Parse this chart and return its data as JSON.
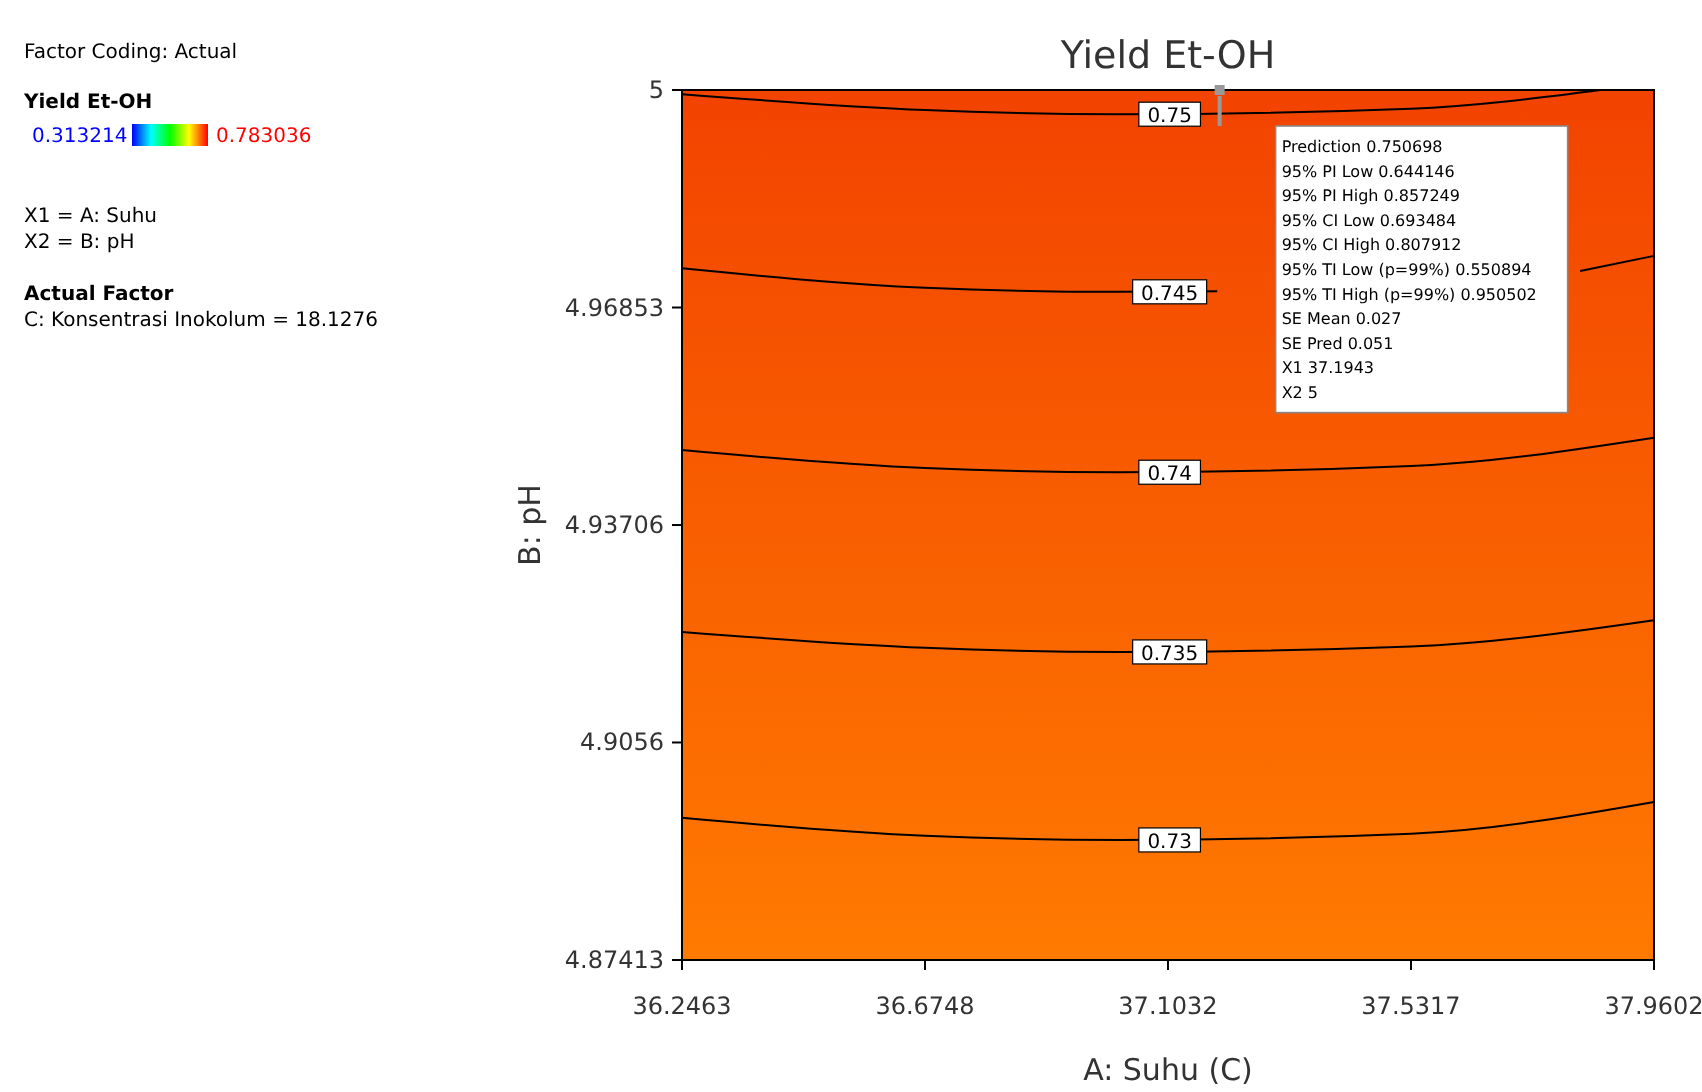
{
  "chart_data": {
    "type": "line",
    "title": "Yield Et-OH",
    "xlabel": "A: Suhu (C)",
    "ylabel": "B: pH",
    "clabel": "Yield Et-OH",
    "xlim": [
      36.2463,
      37.9602
    ],
    "xticks": [
      36.2463,
      36.6748,
      37.1032,
      37.5317,
      37.9602
    ],
    "ylim": [
      4.87413,
      5
    ],
    "yticks": [
      4.87413,
      4.9056,
      4.93706,
      4.96853,
      5
    ],
    "series": [
      {
        "name": "0.75",
        "color": "#000000",
        "x": [
          36.2463,
          36.6748,
          37.018,
          37.5317,
          37.866
        ],
        "values": [
          4.9994,
          4.9971,
          4.9965,
          4.9973,
          5
        ]
      },
      {
        "name": "0.745",
        "color": "#000000",
        "x": [
          36.2463,
          36.6748,
          37.018,
          37.19,
          37.5317,
          37.83,
          37.9602
        ],
        "values": [
          4.9742,
          4.9714,
          4.9708,
          4.9709,
          null,
          4.9738,
          4.976
        ]
      },
      {
        "name": "0.74",
        "color": "#000000",
        "x": [
          36.2463,
          36.6748,
          37.018,
          37.5317,
          37.9602
        ],
        "values": [
          4.9479,
          4.9453,
          4.9447,
          4.9456,
          4.9497
        ]
      },
      {
        "name": "0.735",
        "color": "#000000",
        "x": [
          36.2463,
          36.6748,
          37.018,
          37.5317,
          37.9602
        ],
        "values": [
          4.9216,
          4.9193,
          4.9187,
          4.9195,
          4.9233
        ]
      },
      {
        "name": "0.73",
        "color": "#000000",
        "x": [
          36.2463,
          36.6748,
          37.018,
          37.5317,
          37.9602
        ],
        "values": [
          4.8947,
          4.8921,
          4.8915,
          4.8924,
          4.897
        ]
      },
      {
        "type": "scatter",
        "color": "#999999",
        "marker": "square",
        "x": [
          37.1943
        ],
        "values": [
          5
        ]
      }
    ],
    "annotations": [
      "Factor Coding: Actual",
      "0.313214",
      "0.783036",
      "X1 = A: Suhu",
      "X2 = B: pH",
      "Actual Factor",
      "C: Konsentrasi Inokolum = 18.1276",
      "Prediction 0.750698",
      "95% PI Low 0.644146",
      "95% PI High 0.857249",
      "95% CI Low 0.693484",
      "95% CI High 0.807912",
      "95% TI Low (p=99%) 0.550894",
      "95% TI High (p=99%) 0.950502",
      "SE Mean 0.027",
      "SE Pred 0.051",
      "X1 37.1943",
      "X2 5"
    ]
  }
}
